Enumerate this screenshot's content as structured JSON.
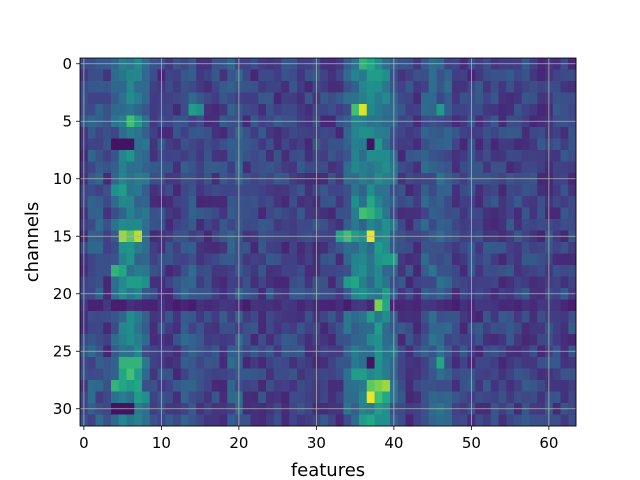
{
  "chart_data": {
    "type": "heatmap",
    "title": "",
    "xlabel": "features",
    "ylabel": "channels",
    "n_cols": 64,
    "n_rows": 32,
    "xlim": [
      -0.5,
      63.5
    ],
    "ylim": [
      31.5,
      -0.5
    ],
    "x_ticks": [
      0,
      10,
      20,
      30,
      40,
      50,
      60
    ],
    "y_ticks": [
      0,
      5,
      10,
      15,
      20,
      25,
      30
    ],
    "grid": true,
    "colormap": "viridis",
    "value_range": [
      0,
      1
    ],
    "base_pattern": {
      "background": 0.2,
      "column_intensity": [
        {
          "col": 1,
          "value": 0.28
        },
        {
          "col": 2,
          "value": 0.26
        },
        {
          "col": 4,
          "value": 0.3
        },
        {
          "col": 5,
          "value": 0.4
        },
        {
          "col": 6,
          "value": 0.45
        },
        {
          "col": 7,
          "value": 0.4
        },
        {
          "col": 8,
          "value": 0.32
        },
        {
          "col": 13,
          "value": 0.27
        },
        {
          "col": 14,
          "value": 0.27
        },
        {
          "col": 19,
          "value": 0.27
        },
        {
          "col": 20,
          "value": 0.27
        },
        {
          "col": 34,
          "value": 0.32
        },
        {
          "col": 35,
          "value": 0.38
        },
        {
          "col": 36,
          "value": 0.4
        },
        {
          "col": 37,
          "value": 0.42
        },
        {
          "col": 38,
          "value": 0.45
        },
        {
          "col": 39,
          "value": 0.42
        },
        {
          "col": 40,
          "value": 0.32
        },
        {
          "col": 42,
          "value": 0.2
        },
        {
          "col": 44,
          "value": 0.27
        },
        {
          "col": 45,
          "value": 0.3
        },
        {
          "col": 46,
          "value": 0.3
        },
        {
          "col": 47,
          "value": 0.27
        }
      ],
      "dark_row": {
        "row": 21,
        "value": 0.08
      }
    },
    "highlights": [
      {
        "row": 0,
        "col": 36,
        "value": 0.65
      },
      {
        "row": 0,
        "col": 37,
        "value": 0.6
      },
      {
        "row": 1,
        "col": 37,
        "value": 0.55
      },
      {
        "row": 1,
        "col": 38,
        "value": 0.55
      },
      {
        "row": 2,
        "col": 37,
        "value": 0.5
      },
      {
        "row": 4,
        "col": 35,
        "value": 0.7
      },
      {
        "row": 4,
        "col": 36,
        "value": 0.95
      },
      {
        "row": 4,
        "col": 14,
        "value": 0.55
      },
      {
        "row": 4,
        "col": 15,
        "value": 0.5
      },
      {
        "row": 4,
        "col": 46,
        "value": 0.55
      },
      {
        "row": 5,
        "col": 6,
        "value": 0.7
      },
      {
        "row": 5,
        "col": 7,
        "value": 0.55
      },
      {
        "row": 6,
        "col": 36,
        "value": 0.5
      },
      {
        "row": 7,
        "col": 4,
        "value": 0.05
      },
      {
        "row": 7,
        "col": 5,
        "value": 0.05
      },
      {
        "row": 7,
        "col": 6,
        "value": 0.05
      },
      {
        "row": 7,
        "col": 37,
        "value": 0.05
      },
      {
        "row": 11,
        "col": 4,
        "value": 0.5
      },
      {
        "row": 11,
        "col": 5,
        "value": 0.55
      },
      {
        "row": 12,
        "col": 6,
        "value": 0.45
      },
      {
        "row": 12,
        "col": 35,
        "value": 0.5
      },
      {
        "row": 12,
        "col": 37,
        "value": 0.6
      },
      {
        "row": 13,
        "col": 36,
        "value": 0.7
      },
      {
        "row": 13,
        "col": 37,
        "value": 0.65
      },
      {
        "row": 13,
        "col": 38,
        "value": 0.55
      },
      {
        "row": 15,
        "col": 5,
        "value": 0.85
      },
      {
        "row": 15,
        "col": 6,
        "value": 0.75
      },
      {
        "row": 15,
        "col": 7,
        "value": 0.9
      },
      {
        "row": 15,
        "col": 33,
        "value": 0.6
      },
      {
        "row": 15,
        "col": 34,
        "value": 0.7
      },
      {
        "row": 15,
        "col": 35,
        "value": 0.55
      },
      {
        "row": 15,
        "col": 36,
        "value": 0.5
      },
      {
        "row": 15,
        "col": 37,
        "value": 0.98
      },
      {
        "row": 15,
        "col": 39,
        "value": 0.5
      },
      {
        "row": 16,
        "col": 5,
        "value": 0.5
      },
      {
        "row": 16,
        "col": 38,
        "value": 0.55
      },
      {
        "row": 17,
        "col": 39,
        "value": 0.55
      },
      {
        "row": 17,
        "col": 40,
        "value": 0.55
      },
      {
        "row": 18,
        "col": 4,
        "value": 0.65
      },
      {
        "row": 18,
        "col": 5,
        "value": 0.6
      },
      {
        "row": 18,
        "col": 36,
        "value": 0.5
      },
      {
        "row": 19,
        "col": 6,
        "value": 0.55
      },
      {
        "row": 19,
        "col": 7,
        "value": 0.55
      },
      {
        "row": 19,
        "col": 8,
        "value": 0.5
      },
      {
        "row": 19,
        "col": 34,
        "value": 0.55
      },
      {
        "row": 19,
        "col": 35,
        "value": 0.6
      },
      {
        "row": 20,
        "col": 36,
        "value": 0.5
      },
      {
        "row": 20,
        "col": 39,
        "value": 0.55
      },
      {
        "row": 21,
        "col": 38,
        "value": 0.8
      },
      {
        "row": 21,
        "col": 39,
        "value": 0.6
      },
      {
        "row": 22,
        "col": 37,
        "value": 0.55
      },
      {
        "row": 23,
        "col": 38,
        "value": 0.55
      },
      {
        "row": 26,
        "col": 5,
        "value": 0.65
      },
      {
        "row": 26,
        "col": 6,
        "value": 0.65
      },
      {
        "row": 26,
        "col": 7,
        "value": 0.65
      },
      {
        "row": 26,
        "col": 37,
        "value": 0.05
      },
      {
        "row": 26,
        "col": 46,
        "value": 0.6
      },
      {
        "row": 27,
        "col": 5,
        "value": 0.6
      },
      {
        "row": 27,
        "col": 6,
        "value": 0.7
      },
      {
        "row": 27,
        "col": 7,
        "value": 0.55
      },
      {
        "row": 27,
        "col": 35,
        "value": 0.55
      },
      {
        "row": 27,
        "col": 36,
        "value": 0.55
      },
      {
        "row": 28,
        "col": 4,
        "value": 0.65
      },
      {
        "row": 28,
        "col": 5,
        "value": 0.6
      },
      {
        "row": 28,
        "col": 6,
        "value": 0.55
      },
      {
        "row": 28,
        "col": 7,
        "value": 0.6
      },
      {
        "row": 28,
        "col": 37,
        "value": 0.75
      },
      {
        "row": 28,
        "col": 38,
        "value": 0.8
      },
      {
        "row": 28,
        "col": 39,
        "value": 0.85
      },
      {
        "row": 29,
        "col": 7,
        "value": 0.55
      },
      {
        "row": 29,
        "col": 8,
        "value": 0.5
      },
      {
        "row": 29,
        "col": 37,
        "value": 0.98
      },
      {
        "row": 29,
        "col": 38,
        "value": 0.7
      },
      {
        "row": 29,
        "col": 39,
        "value": 0.6
      },
      {
        "row": 30,
        "col": 4,
        "value": 0.05
      },
      {
        "row": 30,
        "col": 5,
        "value": 0.05
      },
      {
        "row": 30,
        "col": 6,
        "value": 0.05
      },
      {
        "row": 30,
        "col": 38,
        "value": 0.55
      },
      {
        "row": 30,
        "col": 39,
        "value": 0.5
      },
      {
        "row": 31,
        "col": 36,
        "value": 0.55
      },
      {
        "row": 31,
        "col": 37,
        "value": 0.6
      },
      {
        "row": 31,
        "col": 38,
        "value": 0.5
      }
    ]
  }
}
